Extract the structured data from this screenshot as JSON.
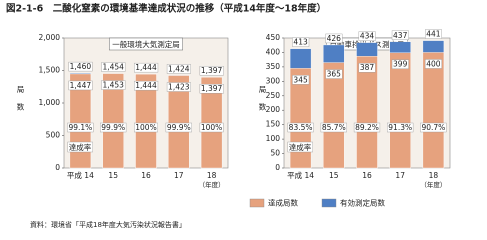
{
  "title": "図2-1-6　二酸化窒素の環境基準達成状況の推移（平成14年度～18年度）",
  "source": "資料：環境省「平成18年度大気汚染状況報告書」",
  "chart_data": [
    {
      "type": "bar",
      "title": "一般環境大気測定局",
      "y_label": "局数",
      "x_label": "（年度）",
      "categories": [
        "平成 14",
        "15",
        "16",
        "17",
        "18"
      ],
      "ylim": [
        0,
        2000
      ],
      "yticks": [
        0,
        500,
        {
          "value": 1000,
          "label": "1,000"
        },
        {
          "value": 1500,
          "label": "1,500"
        },
        {
          "value": 2000,
          "label": "2,000"
        }
      ],
      "series": [
        {
          "name": "有効測定局数",
          "color": "#4f7fc4",
          "values": [
            1460,
            1454,
            1444,
            1424,
            1397
          ],
          "value_labels": [
            "1,460",
            "1,454",
            "1,444",
            "1,424",
            "1,397"
          ]
        },
        {
          "name": "達成局数",
          "color": "#e6a27e",
          "values": [
            1447,
            1453,
            1444,
            1423,
            1397
          ],
          "value_labels": [
            "1,447",
            "1,453",
            "1,444",
            "1,423",
            "1,397"
          ]
        }
      ],
      "rates": {
        "name": "達成率",
        "values": [
          99.1,
          99.9,
          100,
          99.9,
          100
        ],
        "value_labels": [
          "99.1%",
          "99.9%",
          "100%",
          "99.9%",
          "100%"
        ]
      }
    },
    {
      "type": "bar",
      "title": "自動車排出ガス測定局",
      "y_label": "局数",
      "x_label": "（年度）",
      "categories": [
        "平成 14",
        "15",
        "16",
        "17",
        "18"
      ],
      "ylim": [
        0,
        450
      ],
      "yticks": [
        0,
        50,
        100,
        150,
        200,
        250,
        300,
        350,
        400,
        450
      ],
      "series": [
        {
          "name": "有効測定局数",
          "color": "#4f7fc4",
          "values": [
            413,
            426,
            434,
            437,
            441
          ]
        },
        {
          "name": "達成局数",
          "color": "#e6a27e",
          "values": [
            345,
            365,
            387,
            399,
            400
          ]
        }
      ],
      "rates": {
        "name": "達成率",
        "values": [
          83.5,
          85.7,
          89.2,
          91.3,
          90.7
        ],
        "value_labels": [
          "83.5%",
          "85.7%",
          "89.2%",
          "91.3%",
          "90.7%"
        ]
      }
    }
  ]
}
